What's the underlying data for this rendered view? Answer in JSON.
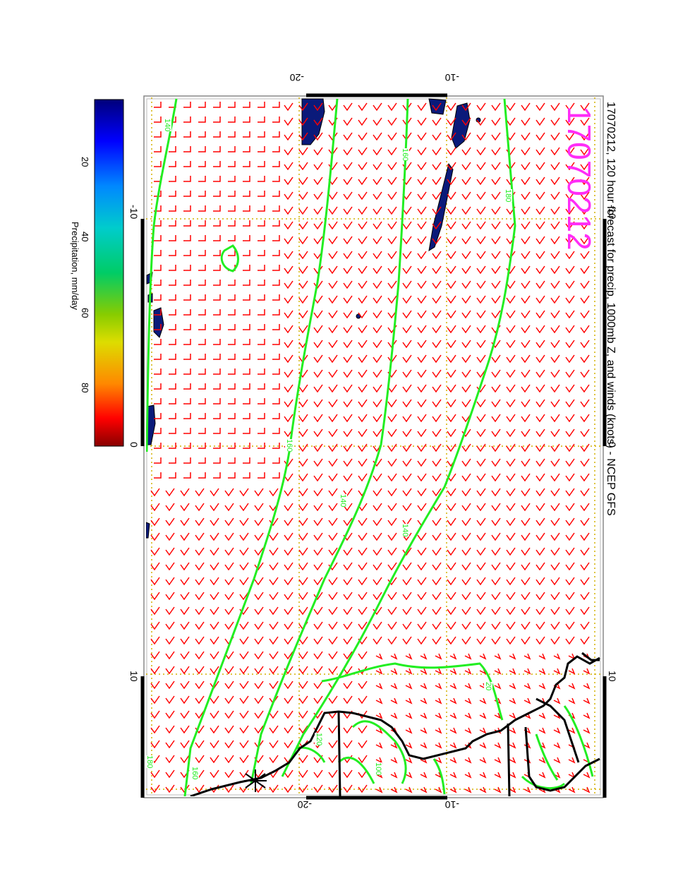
{
  "title": "17070212, 120 hour forecast for precip, 1000mb Z, and winds (knots) - NCEP GFS",
  "date_stamp": "17070212",
  "colors": {
    "stamp": "#ff2cf7",
    "barbs": "#ff0000",
    "contours": "#22ee22",
    "coast": "#000000",
    "grid": "#d4b000",
    "precip": "#0a1a7a"
  },
  "colorbar": {
    "label": "Precipitation, mm/day",
    "ticks": [
      "20",
      "40",
      "60",
      "80"
    ],
    "stops": [
      "#00007a",
      "#0000ff",
      "#0088ff",
      "#00cccc",
      "#00cc66",
      "#88cc00",
      "#dddd00",
      "#ff8800",
      "#ff0000",
      "#880000"
    ]
  },
  "axes": {
    "top_labels": [
      "-20",
      "-10"
    ],
    "bottom_labels": [
      "-20",
      "-10"
    ],
    "left_labels": [
      "-10",
      "0",
      "10"
    ],
    "right_labels": [
      "-10",
      "0",
      "10"
    ]
  },
  "contour_labels": [
    "140",
    "160",
    "180",
    "160",
    "140",
    "140",
    "20",
    "120",
    "100",
    "180",
    "160"
  ]
}
